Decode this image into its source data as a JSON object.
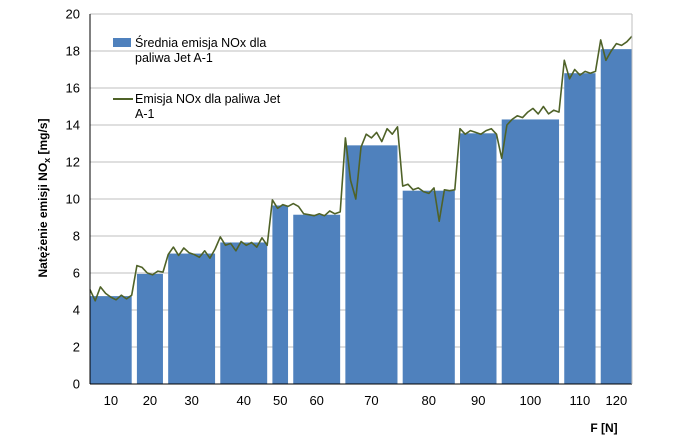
{
  "chart_data": {
    "type": "bar",
    "ylabel": "Natężenie emisji NO",
    "ylabel_sub": "x",
    "ylabel_unit": " [mg/s]",
    "xlabel": "F [N]",
    "ylim": [
      0,
      20
    ],
    "yticks": [
      0,
      2,
      4,
      6,
      8,
      10,
      12,
      14,
      16,
      18,
      20
    ],
    "legend_position": "top-left",
    "grid": true,
    "bars": {
      "name_line1": "Średnia emisja NOx dla",
      "name_line2": "paliwa Jet A-1",
      "color": "#4f81bd",
      "categories": [
        "10",
        "20",
        "30",
        "40",
        "50",
        "60",
        "70",
        "80",
        "90",
        "100",
        "110",
        "120"
      ],
      "values": [
        4.75,
        5.95,
        7.05,
        7.65,
        9.65,
        9.15,
        12.9,
        10.45,
        13.55,
        14.3,
        16.8,
        18.1
      ],
      "x_start": [
        0,
        9,
        15,
        25,
        35,
        39,
        49,
        60,
        71,
        79,
        91,
        98
      ],
      "x_end": [
        8,
        14,
        24,
        34,
        38,
        48,
        59,
        70,
        78,
        90,
        97,
        104
      ]
    },
    "line": {
      "name_line1": "Emisja NOx dla paliwa Jet",
      "name_line2": "A-1",
      "color": "#4f6228",
      "x_range": [
        0,
        104
      ],
      "values": [
        5.1,
        4.5,
        5.25,
        4.9,
        4.7,
        4.55,
        4.8,
        4.6,
        4.8,
        6.4,
        6.3,
        6.0,
        5.9,
        6.1,
        6.05,
        7.0,
        7.4,
        6.95,
        7.35,
        7.1,
        7.0,
        6.85,
        7.2,
        6.8,
        7.3,
        7.95,
        7.5,
        7.6,
        7.2,
        7.7,
        7.5,
        7.65,
        7.4,
        7.9,
        7.5,
        9.95,
        9.5,
        9.7,
        9.6,
        9.75,
        9.6,
        9.2,
        9.15,
        9.1,
        9.2,
        9.1,
        9.35,
        9.2,
        9.3,
        13.3,
        11.0,
        10.0,
        12.8,
        13.5,
        13.3,
        13.6,
        13.1,
        13.8,
        13.5,
        13.9,
        10.7,
        10.8,
        10.5,
        10.6,
        10.4,
        10.3,
        10.6,
        8.8,
        10.5,
        10.45,
        10.5,
        13.8,
        13.5,
        13.7,
        13.6,
        13.5,
        13.7,
        13.8,
        13.5,
        12.2,
        14.0,
        14.3,
        14.5,
        14.4,
        14.7,
        14.9,
        14.6,
        15.0,
        14.6,
        14.8,
        14.7,
        17.5,
        16.5,
        17.0,
        16.7,
        16.9,
        16.8,
        16.9,
        18.6,
        17.5,
        18.0,
        18.4,
        18.3,
        18.5,
        18.8
      ]
    }
  }
}
